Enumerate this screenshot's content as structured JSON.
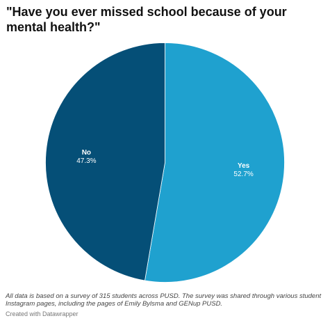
{
  "chart_data": {
    "type": "pie",
    "title": "\"Have you ever missed school because of your mental health?\"",
    "categories": [
      "Yes",
      "No"
    ],
    "values": [
      52.7,
      47.3
    ],
    "value_labels": [
      "52.7%",
      "47.3%"
    ],
    "colors": [
      "#1fa1cf",
      "#054f77"
    ],
    "notes": "All data is based on a survey of 315 students across PUSD. The survey was shared through various student Instagram pages, including the pages of Emily Bylsma and GENup PUSD.",
    "credit": "Created with Datawrapper"
  }
}
